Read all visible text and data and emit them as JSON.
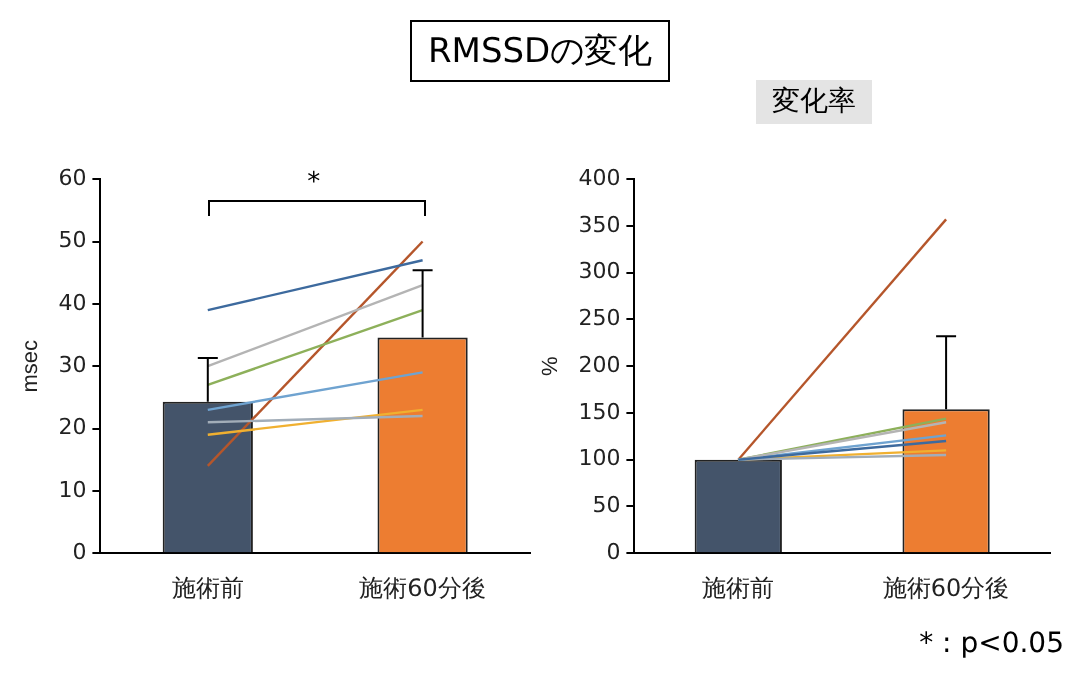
{
  "chart_data": [
    {
      "type": "bar",
      "title": "RMSSDの変化",
      "ylabel": "msec",
      "categories": [
        "施術前",
        "施術60分後"
      ],
      "ylim": [
        0,
        60
      ],
      "yticks": [
        0,
        10,
        20,
        30,
        40,
        50,
        60
      ],
      "marker": "none",
      "annotations": [
        "*"
      ],
      "series": [
        {
          "type": "bar",
          "colors": [
            "#44546a",
            "#ed7d31"
          ],
          "values": [
            24.3,
            34.6
          ],
          "errors": [
            7.0,
            10.8
          ]
        },
        {
          "type": "line",
          "color": "#3d6a9e",
          "values": [
            39,
            47
          ]
        },
        {
          "type": "line",
          "color": "#b4b4b4",
          "values": [
            30,
            43
          ]
        },
        {
          "type": "line",
          "color": "#8db05a",
          "values": [
            27,
            39
          ]
        },
        {
          "type": "line",
          "color": "#6fa3d0",
          "values": [
            23,
            29
          ]
        },
        {
          "type": "line",
          "color": "#a2adb8",
          "values": [
            21,
            22
          ]
        },
        {
          "type": "line",
          "color": "#f0b030",
          "values": [
            19,
            23
          ]
        },
        {
          "type": "line",
          "color": "#b5562b",
          "values": [
            14,
            50
          ]
        }
      ]
    },
    {
      "type": "bar",
      "title": "変化率",
      "ylabel": "%",
      "categories": [
        "施術前",
        "施術60分後"
      ],
      "ylim": [
        0,
        400
      ],
      "yticks": [
        0,
        50,
        100,
        150,
        200,
        250,
        300,
        350,
        400
      ],
      "marker": "none",
      "annotations": [
        "* : p<0.05"
      ],
      "series": [
        {
          "type": "bar",
          "colors": [
            "#44546a",
            "#ed7d31"
          ],
          "values": [
            100,
            154
          ],
          "errors": [
            null,
            78
          ]
        },
        {
          "type": "line",
          "color": "#3d6a9e",
          "values": [
            100,
            120
          ]
        },
        {
          "type": "line",
          "color": "#b4b4b4",
          "values": [
            100,
            140
          ]
        },
        {
          "type": "line",
          "color": "#8db05a",
          "values": [
            100,
            144
          ]
        },
        {
          "type": "line",
          "color": "#6fa3d0",
          "values": [
            100,
            126
          ]
        },
        {
          "type": "line",
          "color": "#a2adb8",
          "values": [
            100,
            105
          ]
        },
        {
          "type": "line",
          "color": "#f0b030",
          "values": [
            100,
            110
          ]
        },
        {
          "type": "line",
          "color": "#b5562b",
          "values": [
            100,
            357
          ]
        }
      ]
    }
  ]
}
